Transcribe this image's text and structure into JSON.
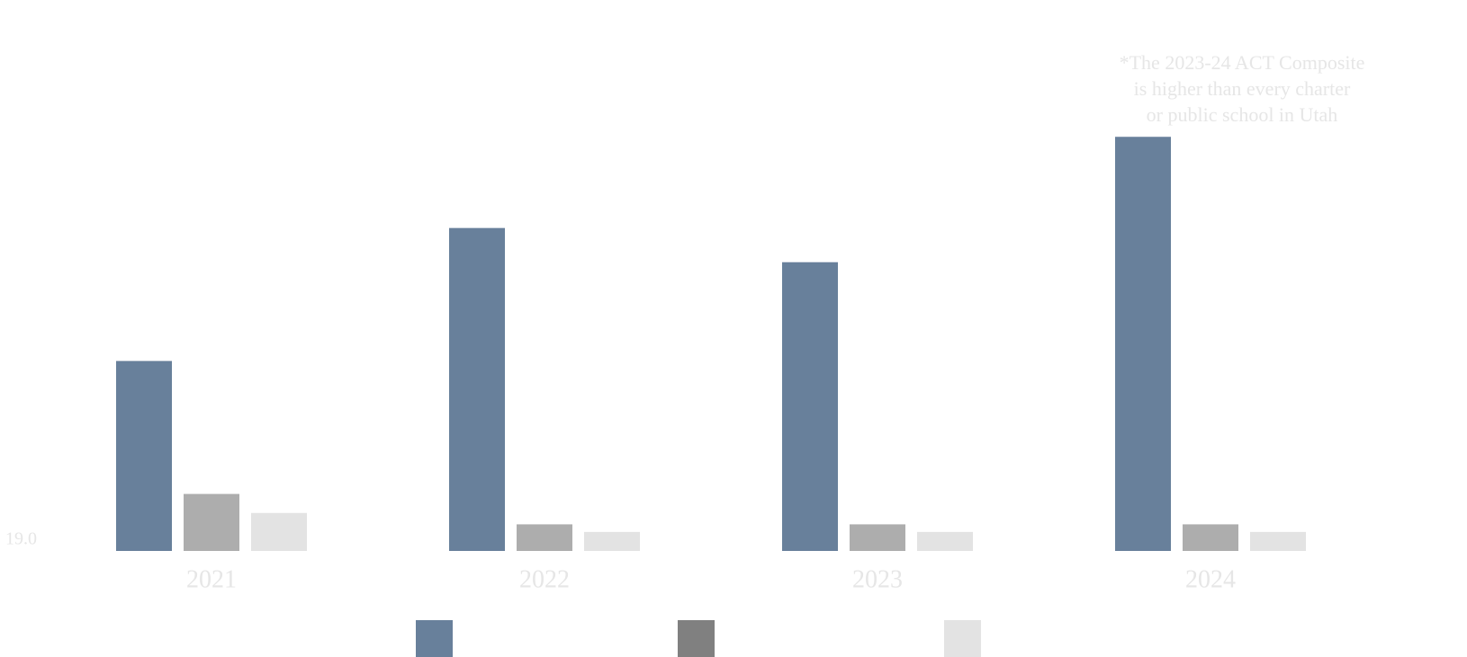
{
  "chart_data": {
    "type": "bar",
    "annotation_lines": [
      "*The 2023-24 ACT Composite",
      "is higher than every charter",
      "or public school in Utah"
    ],
    "categories": [
      "2021",
      "2022",
      "2023",
      "2024"
    ],
    "series": [
      {
        "color": "#68809b",
        "legend_color": "#68809b",
        "values": [
          24.0,
          27.5,
          26.6,
          29.9
        ]
      },
      {
        "color": "#adadad",
        "legend_color": "#808080",
        "values": [
          20.5,
          19.7,
          19.7,
          19.7
        ]
      },
      {
        "color": "#e3e3e3",
        "legend_color": "#e3e3e3",
        "values": [
          20.0,
          19.5,
          19.5,
          19.5
        ]
      }
    ],
    "ylim": [
      19,
      30
    ],
    "yticks": [
      {
        "value": 19,
        "label": "19.0"
      }
    ],
    "grid": false
  }
}
